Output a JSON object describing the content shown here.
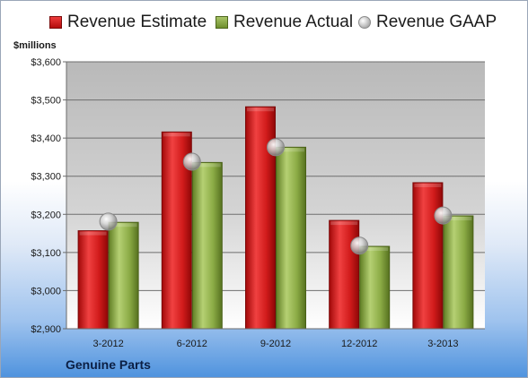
{
  "chart_data": {
    "type": "bar",
    "categories": [
      "3-2012",
      "6-2012",
      "9-2012",
      "12-2012",
      "3-2013"
    ],
    "series": [
      {
        "name": "Revenue Estimate",
        "kind": "bar",
        "color": "#d31e1e",
        "values": [
          3157,
          3416,
          3482,
          3184,
          3283
        ]
      },
      {
        "name": "Revenue Actual",
        "kind": "bar",
        "color": "#8caa44",
        "values": [
          3179,
          3336,
          3376,
          3116,
          3196
        ]
      },
      {
        "name": "Revenue GAAP",
        "kind": "marker",
        "color": "#b8b8b8",
        "values": [
          3181,
          3338,
          3376,
          3118,
          3197
        ]
      }
    ],
    "ylabel": "$millions",
    "xlabel": "Genuine Parts",
    "ylim": [
      2900,
      3600
    ],
    "yticks": [
      2900,
      3000,
      3100,
      3200,
      3300,
      3400,
      3500,
      3600
    ],
    "ytick_labels": [
      "$2,900",
      "$3,000",
      "$3,100",
      "$3,200",
      "$3,300",
      "$3,400",
      "$3,500",
      "$3,600"
    ],
    "grid": true,
    "legend_position": "top"
  }
}
